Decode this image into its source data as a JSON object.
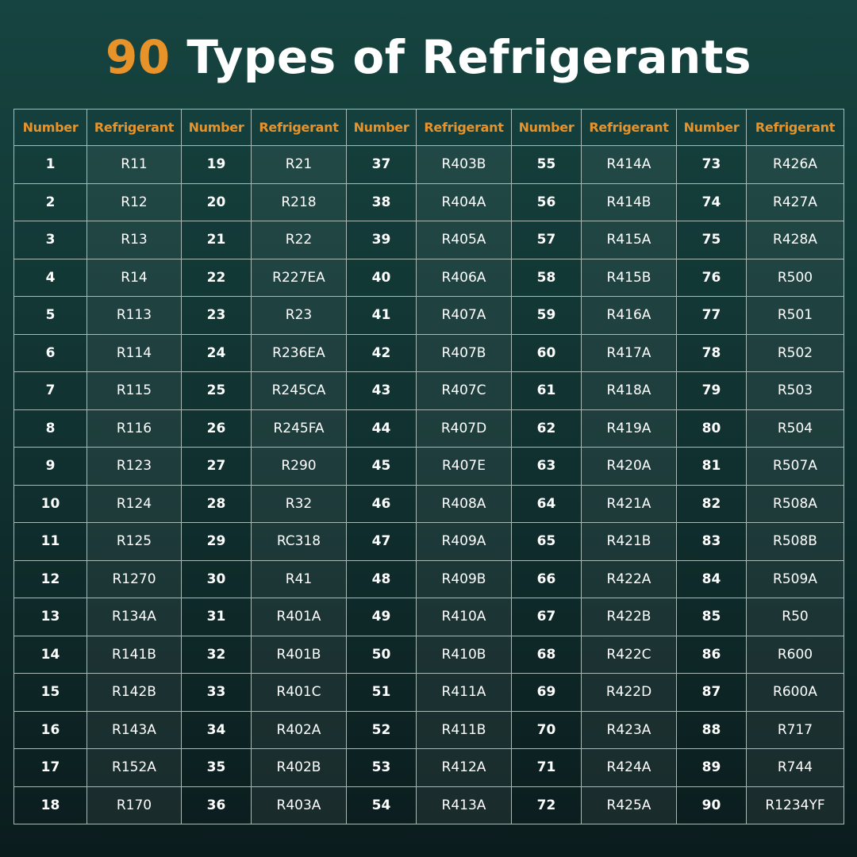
{
  "header": {
    "highlight": "90",
    "title": "Types of Refrigerants"
  },
  "table": {
    "columns": [
      "Number",
      "Refrigerant",
      "Number",
      "Refrigerant",
      "Number",
      "Refrigerant",
      "Number",
      "Refrigerant",
      "Number",
      "Refrigerant"
    ],
    "rows": [
      [
        1,
        "R11",
        19,
        "R21",
        37,
        "R403B",
        55,
        "R414A",
        73,
        "R426A"
      ],
      [
        2,
        "R12",
        20,
        "R218",
        38,
        "R404A",
        56,
        "R414B",
        74,
        "R427A"
      ],
      [
        3,
        "R13",
        21,
        "R22",
        39,
        "R405A",
        57,
        "R415A",
        75,
        "R428A"
      ],
      [
        4,
        "R14",
        22,
        "R227EA",
        40,
        "R406A",
        58,
        "R415B",
        76,
        "R500"
      ],
      [
        5,
        "R113",
        23,
        "R23",
        41,
        "R407A",
        59,
        "R416A",
        77,
        "R501"
      ],
      [
        6,
        "R114",
        24,
        "R236EA",
        42,
        "R407B",
        60,
        "R417A",
        78,
        "R502"
      ],
      [
        7,
        "R115",
        25,
        "R245CA",
        43,
        "R407C",
        61,
        "R418A",
        79,
        "R503"
      ],
      [
        8,
        "R116",
        26,
        "R245FA",
        44,
        "R407D",
        62,
        "R419A",
        80,
        "R504"
      ],
      [
        9,
        "R123",
        27,
        "R290",
        45,
        "R407E",
        63,
        "R420A",
        81,
        "R507A"
      ],
      [
        10,
        "R124",
        28,
        "R32",
        46,
        "R408A",
        64,
        "R421A",
        82,
        "R508A"
      ],
      [
        11,
        "R125",
        29,
        "RC318",
        47,
        "R409A",
        65,
        "R421B",
        83,
        "R508B"
      ],
      [
        12,
        "R1270",
        30,
        "R41",
        48,
        "R409B",
        66,
        "R422A",
        84,
        "R509A"
      ],
      [
        13,
        "R134A",
        31,
        "R401A",
        49,
        "R410A",
        67,
        "R422B",
        85,
        "R50"
      ],
      [
        14,
        "R141B",
        32,
        "R401B",
        50,
        "R410B",
        68,
        "R422C",
        86,
        "R600"
      ],
      [
        15,
        "R142B",
        33,
        "R401C",
        51,
        "R411A",
        69,
        "R422D",
        87,
        "R600A"
      ],
      [
        16,
        "R143A",
        34,
        "R402A",
        52,
        "R411B",
        70,
        "R423A",
        88,
        "R717"
      ],
      [
        17,
        "R152A",
        35,
        "R402B",
        53,
        "R412A",
        71,
        "R424A",
        89,
        "R744"
      ],
      [
        18,
        "R170",
        36,
        "R403A",
        54,
        "R413A",
        72,
        "R425A",
        90,
        "R1234YF"
      ]
    ]
  }
}
